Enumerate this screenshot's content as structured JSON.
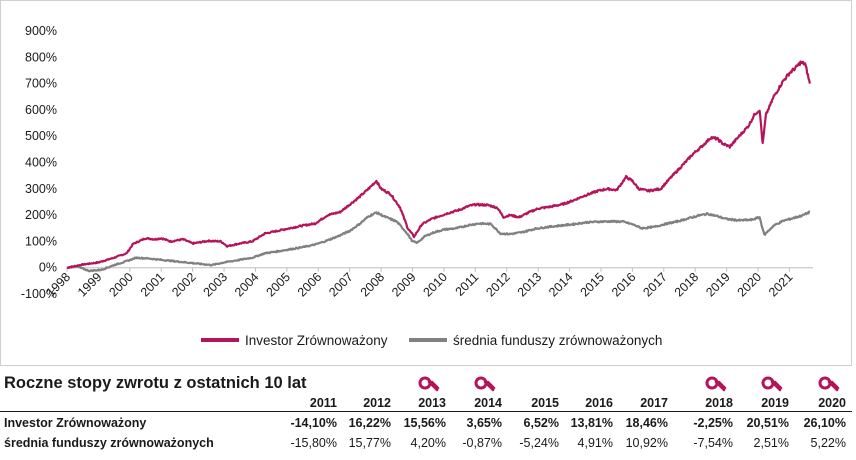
{
  "chart_data": {
    "type": "line",
    "title": "",
    "xlabel": "",
    "ylabel": "",
    "ylim": [
      -100,
      900
    ],
    "yticks": [
      -100,
      0,
      100,
      200,
      300,
      400,
      500,
      600,
      700,
      800,
      900
    ],
    "ytick_labels": [
      "-100%",
      "0%",
      "100%",
      "200%",
      "300%",
      "400%",
      "500%",
      "600%",
      "700%",
      "800%",
      "900%"
    ],
    "xlim": [
      1998.0,
      2021.75
    ],
    "xticks": [
      1998,
      1999,
      2000,
      2001,
      2002,
      2003,
      2004,
      2005,
      2006,
      2007,
      2008,
      2009,
      2010,
      2011,
      2012,
      2013,
      2014,
      2015,
      2016,
      2017,
      2018,
      2019,
      2020,
      2021
    ],
    "xtick_labels": [
      "1998",
      "1999",
      "2000",
      "2001",
      "2002",
      "2003",
      "2004",
      "2005",
      "2006",
      "2007",
      "2008",
      "2009",
      "2010",
      "2011",
      "2012",
      "2013",
      "2014",
      "2015",
      "2016",
      "2017",
      "2018",
      "2019",
      "2020",
      "2021"
    ],
    "grid": false,
    "legend_position": "bottom",
    "series": [
      {
        "name": "Investor Zrównoważony",
        "color": "#b5145a",
        "points": [
          [
            1998.0,
            0
          ],
          [
            1998.5,
            12
          ],
          [
            1999.0,
            20
          ],
          [
            1999.5,
            38
          ],
          [
            1999.9,
            55
          ],
          [
            2000.1,
            90
          ],
          [
            2000.5,
            112
          ],
          [
            2000.8,
            108
          ],
          [
            2001.0,
            112
          ],
          [
            2001.3,
            100
          ],
          [
            2001.7,
            108
          ],
          [
            2002.0,
            92
          ],
          [
            2002.5,
            102
          ],
          [
            2002.9,
            100
          ],
          [
            2003.1,
            82
          ],
          [
            2003.5,
            92
          ],
          [
            2003.9,
            100
          ],
          [
            2004.3,
            130
          ],
          [
            2004.7,
            140
          ],
          [
            2005.0,
            148
          ],
          [
            2005.5,
            160
          ],
          [
            2005.9,
            168
          ],
          [
            2006.3,
            200
          ],
          [
            2006.7,
            212
          ],
          [
            2007.0,
            240
          ],
          [
            2007.3,
            268
          ],
          [
            2007.6,
            300
          ],
          [
            2007.85,
            330
          ],
          [
            2008.0,
            300
          ],
          [
            2008.3,
            280
          ],
          [
            2008.6,
            230
          ],
          [
            2008.85,
            150
          ],
          [
            2009.05,
            118
          ],
          [
            2009.3,
            165
          ],
          [
            2009.6,
            185
          ],
          [
            2009.9,
            198
          ],
          [
            2010.2,
            210
          ],
          [
            2010.5,
            220
          ],
          [
            2010.8,
            235
          ],
          [
            2011.0,
            240
          ],
          [
            2011.4,
            238
          ],
          [
            2011.7,
            228
          ],
          [
            2011.9,
            192
          ],
          [
            2012.1,
            200
          ],
          [
            2012.4,
            192
          ],
          [
            2012.7,
            210
          ],
          [
            2013.0,
            225
          ],
          [
            2013.4,
            232
          ],
          [
            2013.8,
            242
          ],
          [
            2014.1,
            255
          ],
          [
            2014.5,
            275
          ],
          [
            2014.9,
            292
          ],
          [
            2015.2,
            300
          ],
          [
            2015.5,
            295
          ],
          [
            2015.8,
            345
          ],
          [
            2016.0,
            330
          ],
          [
            2016.2,
            300
          ],
          [
            2016.5,
            292
          ],
          [
            2016.9,
            300
          ],
          [
            2017.2,
            340
          ],
          [
            2017.6,
            390
          ],
          [
            2017.95,
            435
          ],
          [
            2018.2,
            460
          ],
          [
            2018.5,
            495
          ],
          [
            2018.7,
            490
          ],
          [
            2018.9,
            470
          ],
          [
            2019.1,
            460
          ],
          [
            2019.4,
            500
          ],
          [
            2019.7,
            540
          ],
          [
            2019.9,
            585
          ],
          [
            2020.05,
            600
          ],
          [
            2020.15,
            470
          ],
          [
            2020.25,
            580
          ],
          [
            2020.5,
            650
          ],
          [
            2020.8,
            710
          ],
          [
            2021.0,
            740
          ],
          [
            2021.2,
            760
          ],
          [
            2021.35,
            780
          ],
          [
            2021.5,
            775
          ],
          [
            2021.65,
            700
          ]
        ]
      },
      {
        "name": "średnia funduszy zrównoważonych",
        "color": "#808080",
        "points": [
          [
            1998.0,
            0
          ],
          [
            1998.3,
            5
          ],
          [
            1998.7,
            -12
          ],
          [
            1999.1,
            -8
          ],
          [
            1999.5,
            10
          ],
          [
            1999.9,
            25
          ],
          [
            2000.2,
            38
          ],
          [
            2000.6,
            35
          ],
          [
            2001.0,
            30
          ],
          [
            2001.4,
            25
          ],
          [
            2001.8,
            20
          ],
          [
            2002.2,
            15
          ],
          [
            2002.6,
            10
          ],
          [
            2003.0,
            20
          ],
          [
            2003.4,
            28
          ],
          [
            2003.9,
            38
          ],
          [
            2004.3,
            55
          ],
          [
            2004.7,
            62
          ],
          [
            2005.0,
            68
          ],
          [
            2005.5,
            78
          ],
          [
            2005.9,
            88
          ],
          [
            2006.2,
            100
          ],
          [
            2006.6,
            118
          ],
          [
            2007.0,
            140
          ],
          [
            2007.3,
            165
          ],
          [
            2007.6,
            195
          ],
          [
            2007.85,
            210
          ],
          [
            2008.1,
            195
          ],
          [
            2008.5,
            175
          ],
          [
            2008.8,
            135
          ],
          [
            2009.0,
            100
          ],
          [
            2009.15,
            95
          ],
          [
            2009.4,
            120
          ],
          [
            2009.7,
            135
          ],
          [
            2010.0,
            145
          ],
          [
            2010.4,
            150
          ],
          [
            2010.8,
            162
          ],
          [
            2011.1,
            168
          ],
          [
            2011.5,
            166
          ],
          [
            2011.8,
            130
          ],
          [
            2012.1,
            128
          ],
          [
            2012.5,
            135
          ],
          [
            2012.9,
            148
          ],
          [
            2013.3,
            155
          ],
          [
            2013.7,
            160
          ],
          [
            2014.1,
            165
          ],
          [
            2014.5,
            172
          ],
          [
            2014.9,
            175
          ],
          [
            2015.3,
            176
          ],
          [
            2015.7,
            175
          ],
          [
            2016.0,
            165
          ],
          [
            2016.3,
            150
          ],
          [
            2016.7,
            155
          ],
          [
            2017.0,
            165
          ],
          [
            2017.4,
            175
          ],
          [
            2017.8,
            188
          ],
          [
            2018.1,
            198
          ],
          [
            2018.4,
            205
          ],
          [
            2018.7,
            196
          ],
          [
            2019.0,
            185
          ],
          [
            2019.4,
            180
          ],
          [
            2019.8,
            182
          ],
          [
            2020.05,
            192
          ],
          [
            2020.2,
            125
          ],
          [
            2020.5,
            160
          ],
          [
            2020.8,
            178
          ],
          [
            2021.1,
            188
          ],
          [
            2021.4,
            198
          ],
          [
            2021.65,
            212
          ]
        ]
      }
    ]
  },
  "returns_table": {
    "title": "Roczne stopy zwrotu z ostatnich 10 lat",
    "years": [
      "2011",
      "2012",
      "2013",
      "2014",
      "2015",
      "2016",
      "2017",
      "2018",
      "2019",
      "2020"
    ],
    "badge_years": [
      "2013",
      "2014",
      "2018",
      "2019",
      "2020"
    ],
    "badge_icon": "award-badge-icon",
    "rows": [
      {
        "label": "Investor Zrównoważony",
        "values": [
          "-14,10%",
          "16,22%",
          "15,56%",
          "3,65%",
          "6,52%",
          "13,81%",
          "18,46%",
          "-2,25%",
          "20,51%",
          "26,10%"
        ]
      },
      {
        "label": "średnia funduszy zrównoważonych",
        "values": [
          "-15,80%",
          "15,77%",
          "4,20%",
          "-0,87%",
          "-5,24%",
          "4,91%",
          "10,92%",
          "-7,54%",
          "2,51%",
          "5,22%"
        ]
      }
    ]
  }
}
